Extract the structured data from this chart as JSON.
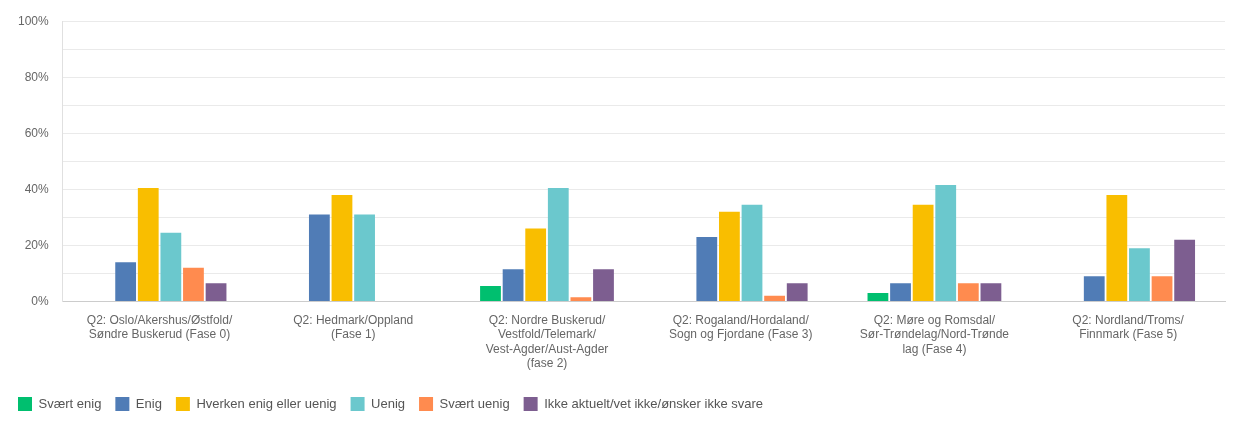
{
  "chart_data": {
    "type": "bar",
    "categories": [
      "Q2: Oslo/Akershus/Østfold/Søndre Buskerud (Fase 0)",
      "Q2: Hedmark/Oppland (Fase 1)",
      "Q2: Nordre Buskerud/Vestfold/Telemark/Vest-Agder/Aust-Agder (fase 2)",
      "Q2: Rogaland/Hordaland/Sogn og Fjordane (Fase 3)",
      "Q2: Møre og Romsdal/Sør-Trøndelag/Nord-Trøndelag (Fase 4)",
      "Q2: Nordland/Troms/Finnmark (Fase 5)"
    ],
    "series": [
      {
        "name": "Svært enig",
        "color": "#00bf6f",
        "values": [
          0,
          0,
          5.5,
          0,
          3,
          0
        ]
      },
      {
        "name": "Enig",
        "color": "#507cb6",
        "values": [
          14,
          31,
          11.5,
          23,
          6.5,
          9
        ]
      },
      {
        "name": "Hverken enig eller uenig",
        "color": "#f9be00",
        "values": [
          40.5,
          38,
          26,
          32,
          34.5,
          38
        ]
      },
      {
        "name": "Uenig",
        "color": "#6bc8cd",
        "values": [
          24.5,
          31,
          40.5,
          34.5,
          41.5,
          19
        ]
      },
      {
        "name": "Svært uenig",
        "color": "#ff8b4f",
        "values": [
          12,
          0,
          1.5,
          2,
          6.5,
          9
        ]
      },
      {
        "name": "Ikke aktuelt/vet ikke/ønsker ikke svare",
        "color": "#7d5e90",
        "values": [
          6.5,
          0,
          11.5,
          6.5,
          6.5,
          22
        ]
      }
    ],
    "ylim": [
      0,
      100
    ],
    "yticks": [
      {
        "value": 0,
        "label": "0%"
      },
      {
        "value": 10,
        "label": null
      },
      {
        "value": 20,
        "label": "20%"
      },
      {
        "value": 30,
        "label": null
      },
      {
        "value": 40,
        "label": "40%"
      },
      {
        "value": 50,
        "label": null
      },
      {
        "value": 60,
        "label": "60%"
      },
      {
        "value": 70,
        "label": null
      },
      {
        "value": 80,
        "label": "80%"
      },
      {
        "value": 90,
        "label": null
      },
      {
        "value": 100,
        "label": "100%"
      }
    ],
    "grid": "y",
    "legend": "bottom left"
  }
}
